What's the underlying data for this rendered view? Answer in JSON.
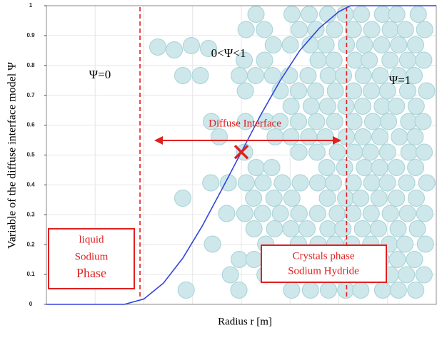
{
  "chart_data": {
    "type": "line",
    "xlabel": "Radius r [m]",
    "ylabel": "Variable of the diffuse interface model Ψ",
    "x": [
      0,
      0.1,
      0.2,
      0.25,
      0.3,
      0.35,
      0.4,
      0.45,
      0.5,
      0.55,
      0.6,
      0.65,
      0.7,
      0.75,
      0.78,
      0.9,
      1
    ],
    "series": [
      {
        "color": "#3344dd",
        "values": [
          0,
          0,
          0,
          0.018,
          0.071,
          0.155,
          0.263,
          0.385,
          0.51,
          0.635,
          0.75,
          0.85,
          0.925,
          0.98,
          1,
          1,
          1
        ]
      }
    ],
    "xlim": [
      0,
      1
    ],
    "ylim": [
      0,
      1
    ],
    "yticks": [
      0,
      0.1,
      0.2,
      0.3,
      0.4,
      0.5,
      0.6,
      0.7,
      0.8,
      0.9,
      1
    ],
    "grid": true,
    "interface_bounds": [
      0.24,
      0.77
    ],
    "marker": {
      "x": 0.5,
      "y": 0.51
    },
    "region_labels": [
      "Ψ=0",
      "0<Ψ<1",
      "Ψ=1"
    ],
    "interface_label": "Diffuse Interface",
    "liquid_box": [
      "liquid",
      "Sodium",
      "Phase"
    ],
    "crystal_box": [
      "Crystals phase",
      "Sodium Hydride"
    ]
  }
}
